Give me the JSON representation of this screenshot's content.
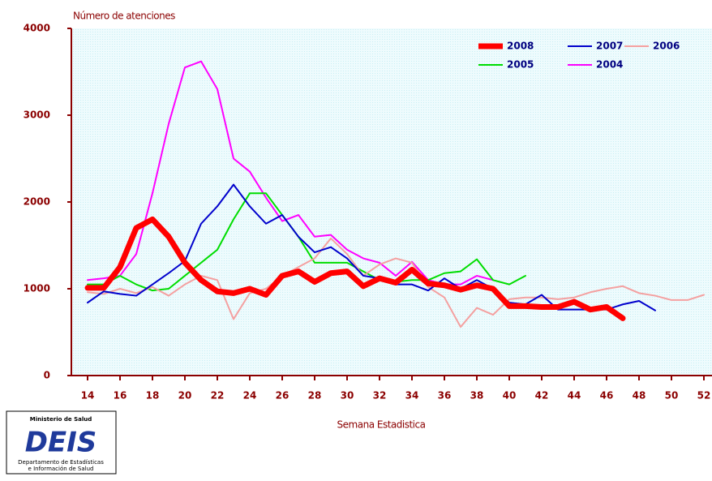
{
  "chart_data": {
    "type": "line",
    "y_label": "Número de atenciones",
    "x_label": "Semana Estadistica",
    "x": [
      14,
      15,
      16,
      17,
      18,
      19,
      20,
      21,
      22,
      23,
      24,
      25,
      26,
      27,
      28,
      29,
      30,
      31,
      32,
      33,
      34,
      35,
      36,
      37,
      38,
      39,
      40,
      41,
      42,
      43,
      44,
      45,
      46,
      47,
      48,
      49,
      50,
      51,
      52
    ],
    "xlim": [
      13,
      52.5
    ],
    "xticks": [
      14,
      16,
      18,
      20,
      22,
      24,
      26,
      28,
      30,
      32,
      34,
      36,
      38,
      40,
      42,
      44,
      46,
      48,
      50,
      52
    ],
    "ylim": [
      0,
      4000
    ],
    "yticks": [
      0,
      1000,
      2000,
      3000,
      4000
    ],
    "series": [
      {
        "name": "2008",
        "color": "#ff0000",
        "values": [
          1010,
          1010,
          1250,
          1700,
          1800,
          1600,
          1300,
          1100,
          970,
          950,
          1000,
          930,
          1150,
          1200,
          1080,
          1180,
          1200,
          1030,
          1120,
          1070,
          1220,
          1060,
          1040,
          990,
          1040,
          1000,
          800,
          800,
          790,
          790,
          850,
          760,
          790,
          660,
          null,
          null,
          null,
          null,
          null
        ]
      },
      {
        "name": "2007",
        "color": "#0000cc",
        "values": [
          840,
          970,
          940,
          920,
          1050,
          1180,
          1320,
          1750,
          1950,
          2200,
          1950,
          1750,
          1850,
          1600,
          1420,
          1480,
          1350,
          1150,
          1120,
          1050,
          1050,
          980,
          1120,
          1000,
          1100,
          1000,
          840,
          820,
          930,
          760,
          760,
          760,
          760,
          820,
          860,
          750,
          null,
          null,
          null
        ]
      },
      {
        "name": "2006",
        "color": "#f4a0a0",
        "values": [
          960,
          940,
          1000,
          950,
          1020,
          920,
          1050,
          1150,
          1100,
          650,
          950,
          1000,
          1150,
          1250,
          1350,
          1580,
          1400,
          1150,
          1280,
          1350,
          1300,
          1020,
          900,
          560,
          780,
          700,
          880,
          900,
          900,
          880,
          900,
          960,
          1000,
          1030,
          950,
          920,
          870,
          870,
          930
        ]
      },
      {
        "name": "2005",
        "color": "#00dd00",
        "values": [
          1050,
          1050,
          1150,
          1050,
          980,
          1000,
          1150,
          1300,
          1450,
          1800,
          2100,
          2100,
          1850,
          1600,
          1300,
          1300,
          1300,
          1200,
          1100,
          1080,
          1100,
          1100,
          1180,
          1200,
          1340,
          1100,
          1050,
          1150,
          null,
          null,
          null,
          null,
          null,
          null,
          null,
          null,
          null,
          null,
          null
        ]
      },
      {
        "name": "2004",
        "color": "#ff00ff",
        "values": [
          1100,
          1120,
          1150,
          1400,
          2100,
          2900,
          3550,
          3620,
          3300,
          2500,
          2350,
          2050,
          1780,
          1850,
          1600,
          1620,
          1450,
          1350,
          1300,
          1150,
          1310,
          1100,
          1050,
          1050,
          1150,
          1100,
          null,
          null,
          null,
          null,
          null,
          null,
          null,
          null,
          null,
          null,
          null,
          null,
          null
        ]
      }
    ]
  },
  "logo": {
    "ministry": "Ministerio de Salud",
    "acronym": "DEIS",
    "line1": "Departamento de Estadísticas",
    "line2": "e Información de Salud"
  }
}
